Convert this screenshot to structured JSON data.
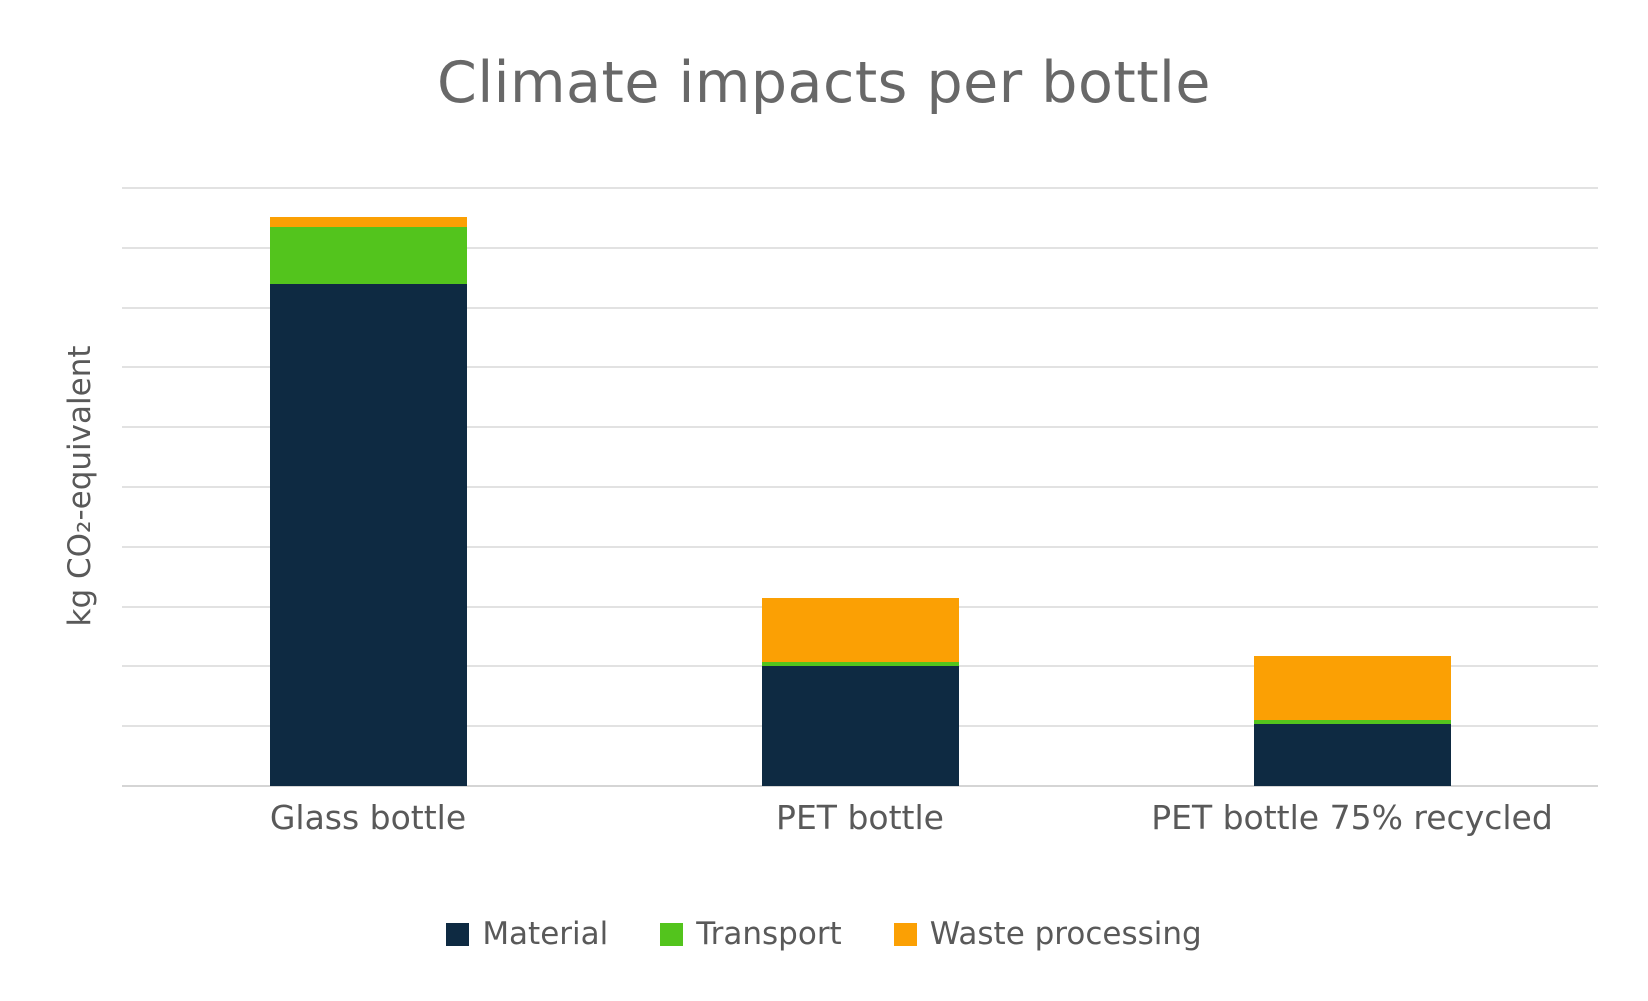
{
  "chart_data": {
    "type": "bar",
    "subtype": "stacked-vertical",
    "title": "Climate impacts per bottle",
    "ylabel": "kg CO₂-equivalent",
    "xlabel": "",
    "categories": [
      "Glass bottle",
      "PET bottle",
      "PET bottle 75% recycled"
    ],
    "series": [
      {
        "name": "Material",
        "color": "#0e2a42",
        "values": [
          8.4,
          2.0,
          1.04
        ]
      },
      {
        "name": "Transport",
        "color": "#53c41d",
        "values": [
          0.95,
          0.08,
          0.07
        ]
      },
      {
        "name": "Waste processing",
        "color": "#fba004",
        "values": [
          0.17,
          1.07,
          1.07
        ]
      }
    ],
    "y_axis": {
      "min": 0,
      "max": 10,
      "gridline_step": 1,
      "tick_labels_visible": false,
      "grid": true,
      "note": "y-axis shows horizontal gridlines only, no numeric tick labels; values estimated in gridline units"
    },
    "legend_position": "bottom",
    "colors": {
      "background": "#ffffff",
      "gridline": "#e2e2e2",
      "axis_baseline": "#d5d5d5",
      "title_text": "#686868",
      "label_text": "#595959"
    }
  }
}
